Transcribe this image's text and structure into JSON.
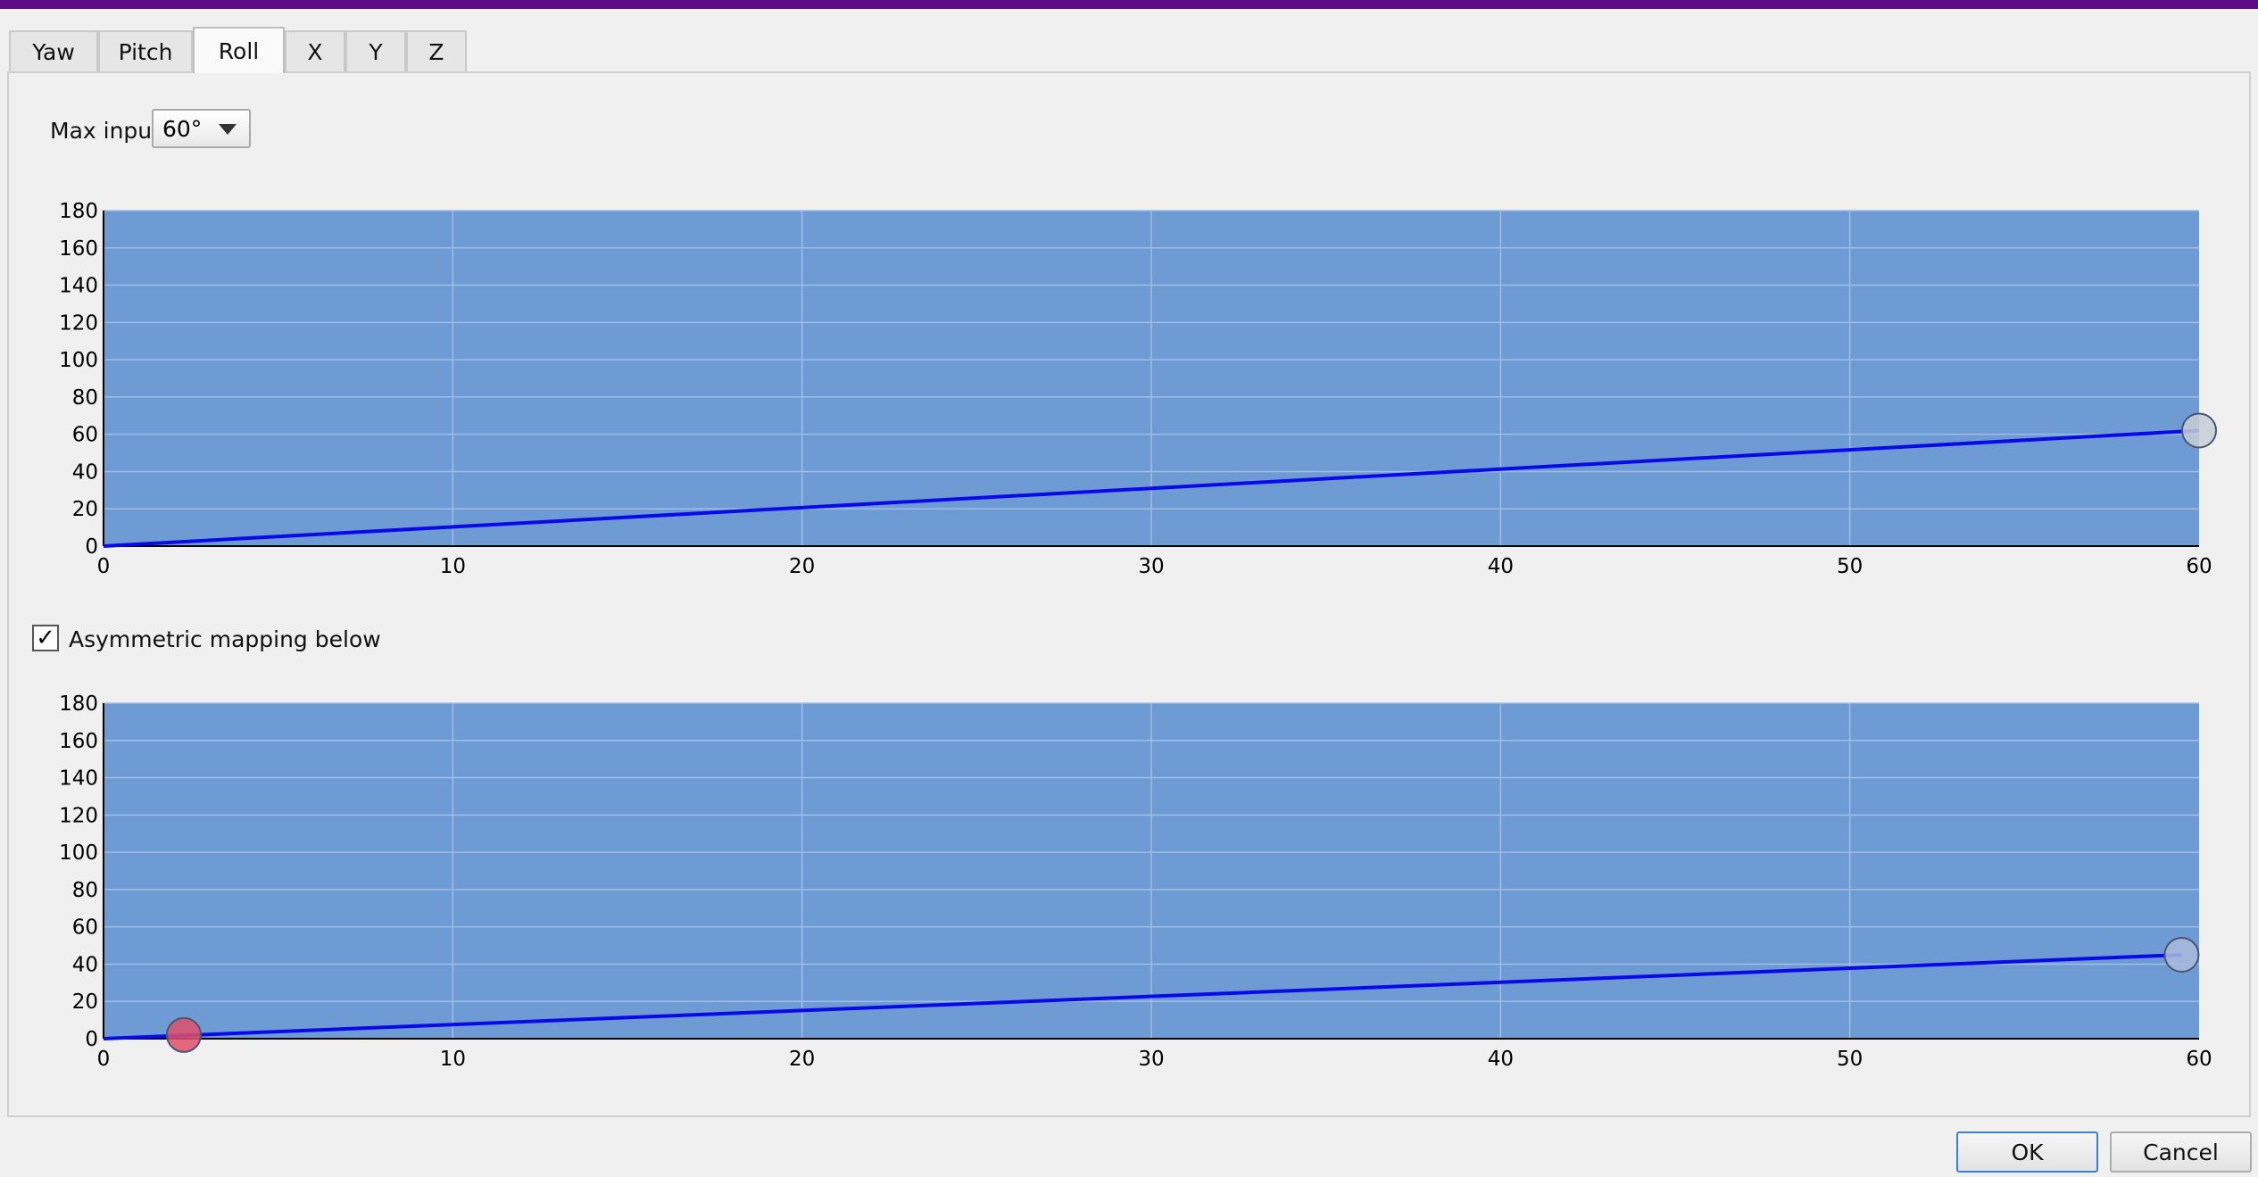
{
  "tabs": [
    {
      "label": "Yaw"
    },
    {
      "label": "Pitch"
    },
    {
      "label": "Roll"
    },
    {
      "label": "X"
    },
    {
      "label": "Y"
    },
    {
      "label": "Z"
    }
  ],
  "active_tab": "Roll",
  "max_input": {
    "label": "Max input",
    "value": "60°"
  },
  "asymmetric": {
    "label": "Asymmetric mapping below",
    "checked": true,
    "check_glyph": "✓"
  },
  "buttons": {
    "ok": "OK",
    "cancel": "Cancel"
  },
  "colors": {
    "top_bar": "#5e0b8a",
    "plot_background": "#6f9bd4",
    "curve": "#0a0ae6",
    "upper_control_point": "#c8ccd6",
    "lower_end_point": "#a9bcdc",
    "lower_start_point": "#e0506a"
  },
  "chart_data": [
    {
      "type": "line",
      "name_ref": "upper mapping curve",
      "xlim": [
        0,
        60
      ],
      "ylim": [
        0,
        180
      ],
      "x_ticks": [
        "0",
        "10",
        "20",
        "30",
        "40",
        "50",
        "60"
      ],
      "y_ticks": [
        "0",
        "20",
        "40",
        "60",
        "80",
        "100",
        "120",
        "140",
        "160",
        "180"
      ],
      "grid": true,
      "points": [
        [
          0,
          0
        ],
        [
          60,
          62
        ]
      ],
      "control_points": [
        [
          60,
          62
        ]
      ]
    },
    {
      "type": "line",
      "name_ref": "lower mapping curve",
      "xlim": [
        0,
        60
      ],
      "ylim": [
        0,
        180
      ],
      "x_ticks": [
        "0",
        "10",
        "20",
        "30",
        "40",
        "50",
        "60"
      ],
      "y_ticks": [
        "0",
        "20",
        "40",
        "60",
        "80",
        "100",
        "120",
        "140",
        "160",
        "180"
      ],
      "grid": true,
      "points": [
        [
          0,
          0
        ],
        [
          59.5,
          45
        ]
      ],
      "control_points": [
        [
          2.3,
          2
        ],
        [
          59.5,
          45
        ]
      ]
    }
  ]
}
